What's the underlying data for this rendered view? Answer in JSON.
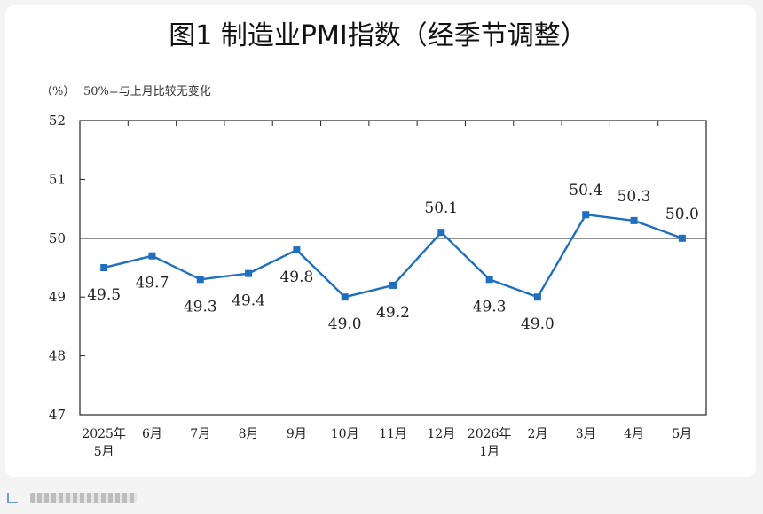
{
  "chart_data": {
    "type": "line",
    "title": "图1  制造业PMI指数（经季节调整）",
    "unit_label": "（%）",
    "note": "50%=与上月比较无变化",
    "categories": [
      [
        "2025年",
        "5月"
      ],
      [
        "6月"
      ],
      [
        "7月"
      ],
      [
        "8月"
      ],
      [
        "9月"
      ],
      [
        "10月"
      ],
      [
        "11月"
      ],
      [
        "12月"
      ],
      [
        "2026年",
        "1月"
      ],
      [
        "2月"
      ],
      [
        "3月"
      ],
      [
        "4月"
      ],
      [
        "5月"
      ]
    ],
    "series": [
      {
        "values": [
          49.5,
          49.7,
          49.3,
          49.4,
          49.8,
          49.0,
          49.2,
          50.1,
          49.3,
          49.0,
          50.4,
          50.3,
          50.0
        ]
      }
    ],
    "data_labels": [
      "49.5",
      "49.7",
      "49.3",
      "49.4",
      "49.8",
      "49.0",
      "49.2",
      "50.1",
      "49.3",
      "49.0",
      "50.4",
      "50.3",
      "50.0"
    ],
    "yticks": [
      47,
      48,
      49,
      50,
      51,
      52
    ],
    "ylim": [
      47,
      52
    ],
    "reference_line": 50,
    "grid": false,
    "legend": "none",
    "colors": {
      "line": "#1f6fc0",
      "reference": "#222222",
      "frame": "#222222"
    }
  }
}
